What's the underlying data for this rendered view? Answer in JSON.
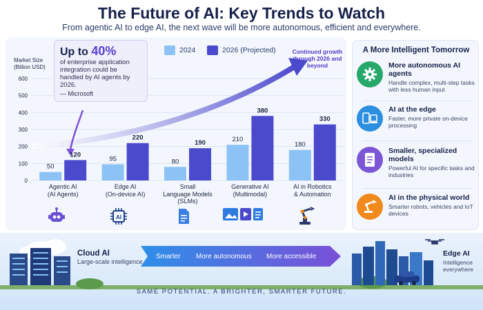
{
  "title": "The Future of AI: Key Trends to Watch",
  "subtitle": "From agentic AI to edge AI, the next wave will be more autonomous, efficient and everywhere.",
  "callout": {
    "prefix": "Up to ",
    "highlight": "40%",
    "body": "of enterprise application integration could be handled by AI agents by 2026.",
    "source": "— Microsoft"
  },
  "growth_note": "Continued growth through 2026 and beyond",
  "chart_data": {
    "type": "bar",
    "ylabel": "Market Size (Billion USD)",
    "ylim": [
      0,
      600
    ],
    "yticks": [
      0,
      100,
      200,
      300,
      400,
      500,
      600
    ],
    "grid": true,
    "legend_position": "top",
    "categories": [
      "Agentic AI (AI Agents)",
      "Edge AI (On-device AI)",
      "Small Language Models (SLMs)",
      "Generative AI (Multimodal)",
      "AI in Robotics & Automation"
    ],
    "category_lines": [
      [
        "Agentic AI",
        "(AI Agents)"
      ],
      [
        "Edge AI",
        "(On-device AI)"
      ],
      [
        "Small",
        "Language Models",
        "(SLMs)"
      ],
      [
        "Generative AI",
        "(Multimodal)"
      ],
      [
        "AI in Robotics",
        "& Automation"
      ]
    ],
    "series": [
      {
        "name": "2024",
        "values": [
          50,
          95,
          80,
          210,
          180
        ],
        "color": "#8cc3f4"
      },
      {
        "name": "2026 (Projected)",
        "values": [
          120,
          220,
          190,
          380,
          330
        ],
        "color": "#4b49cc"
      }
    ]
  },
  "category_icons": [
    "robot-icon",
    "chip-icon",
    "document-icon",
    "media-icon",
    "robot-arm-icon"
  ],
  "right_panel": {
    "title": "A More Intelligent Tomorrow",
    "items": [
      {
        "title": "More autonomous AI agents",
        "desc": "Handle complex, multi-step tasks with less human input",
        "icon": "gear-icon",
        "color": "#27a86b"
      },
      {
        "title": "AI at the edge",
        "desc": "Faster, more private on-device processing",
        "icon": "devices-icon",
        "color": "#2c8fe0"
      },
      {
        "title": "Smaller, specialized models",
        "desc": "Powerful AI for specific tasks and industries",
        "icon": "document-icon",
        "color": "#7b57d6"
      },
      {
        "title": "AI in the physical world",
        "desc": "Smarter robots, vehicles and IoT devices",
        "icon": "robot-arm-icon",
        "color": "#f08a1c"
      }
    ]
  },
  "banner": {
    "cloud_title": "Cloud AI",
    "cloud_sub": "Large-scale intelligence",
    "steps": [
      "Smarter",
      "More autonomous",
      "More accessible"
    ],
    "edge_title": "Edge AI",
    "edge_sub": "Intelligence everywhere",
    "footer": "SAME POTENTIAL. A BRIGHTER, SMARTER FUTURE."
  }
}
